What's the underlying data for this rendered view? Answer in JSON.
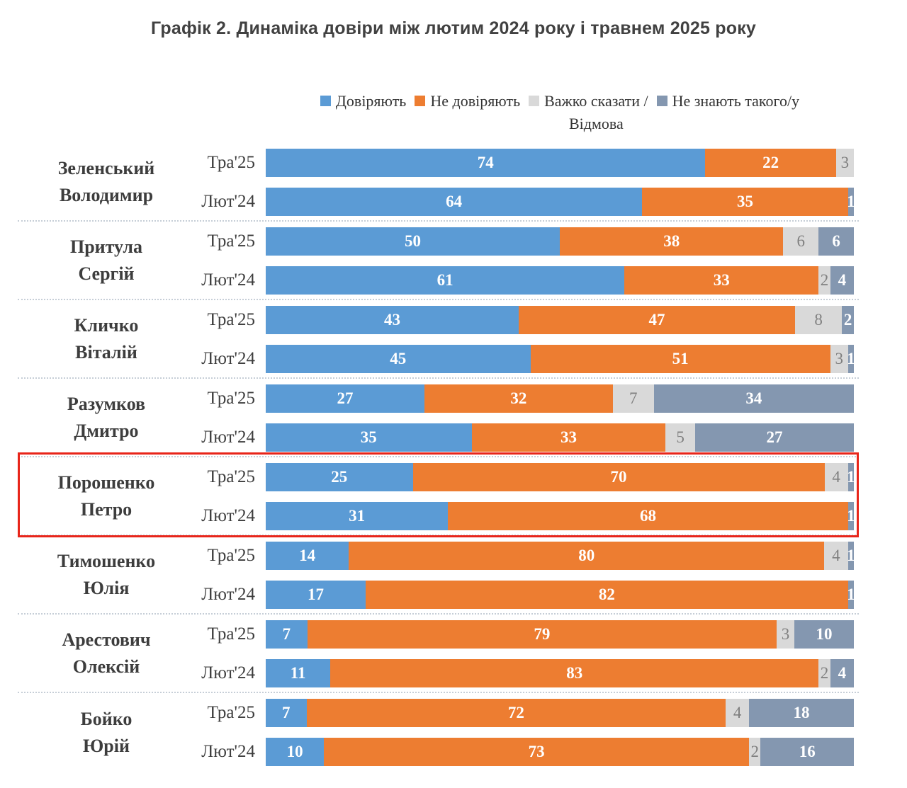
{
  "title": "Графік 2. Динаміка довіри між лютим 2024 року і травнем 2025 року",
  "legend": [
    {
      "icon": "trust-swatch",
      "label": "Довіряють",
      "color": "#5B9BD5"
    },
    {
      "icon": "distrust-swatch",
      "label": "Не довіряють",
      "color": "#ED7D31"
    },
    {
      "icon": "hard-to-say-swatch",
      "label": "Важко сказати /\nВідмова",
      "color": "#D9D9D9"
    },
    {
      "icon": "dont-know-swatch",
      "label": "Не знають такого/у",
      "color": "#8497B0"
    }
  ],
  "highlight_color": "#e8251a",
  "chart_data": {
    "type": "bar",
    "orientation": "horizontal",
    "stacked": true,
    "x_range_percent": [
      0,
      100
    ],
    "grid": false,
    "legend_position": "top",
    "series_names": [
      "Довіряють",
      "Не довіряють",
      "Важко сказати / Відмова",
      "Не знають такого/у"
    ],
    "colors": [
      "#5B9BD5",
      "#ED7D31",
      "#D9D9D9",
      "#8497B0"
    ],
    "period_labels": [
      "Тра'25",
      "Лют'24"
    ],
    "groups": [
      {
        "name": "Зеленський\nВолодимир",
        "highlighted": false,
        "rows": [
          {
            "period": "Тра'25",
            "values": [
              74,
              22,
              3,
              0
            ]
          },
          {
            "period": "Лют'24",
            "values": [
              64,
              35,
              0,
              1
            ]
          }
        ]
      },
      {
        "name": "Притула\nСергій",
        "highlighted": false,
        "rows": [
          {
            "period": "Тра'25",
            "values": [
              50,
              38,
              6,
              6
            ]
          },
          {
            "period": "Лют'24",
            "values": [
              61,
              33,
              2,
              4
            ]
          }
        ]
      },
      {
        "name": "Кличко\nВіталій",
        "highlighted": false,
        "rows": [
          {
            "period": "Тра'25",
            "values": [
              43,
              47,
              8,
              2
            ]
          },
          {
            "period": "Лют'24",
            "values": [
              45,
              51,
              3,
              1
            ]
          }
        ]
      },
      {
        "name": "Разумков\nДмитро",
        "highlighted": false,
        "rows": [
          {
            "period": "Тра'25",
            "values": [
              27,
              32,
              7,
              34
            ]
          },
          {
            "period": "Лют'24",
            "values": [
              35,
              33,
              5,
              27
            ]
          }
        ]
      },
      {
        "name": "Порошенко\nПетро",
        "highlighted": true,
        "rows": [
          {
            "period": "Тра'25",
            "values": [
              25,
              70,
              4,
              1
            ]
          },
          {
            "period": "Лют'24",
            "values": [
              31,
              68,
              0,
              1
            ]
          }
        ]
      },
      {
        "name": "Тимошенко\nЮлія",
        "highlighted": false,
        "rows": [
          {
            "period": "Тра'25",
            "values": [
              14,
              80,
              4,
              1
            ]
          },
          {
            "period": "Лют'24",
            "values": [
              17,
              82,
              0,
              1
            ]
          }
        ]
      },
      {
        "name": "Арестович\nОлексій",
        "highlighted": false,
        "rows": [
          {
            "period": "Тра'25",
            "values": [
              7,
              79,
              3,
              10
            ]
          },
          {
            "period": "Лют'24",
            "values": [
              11,
              83,
              2,
              4
            ]
          }
        ]
      },
      {
        "name": "Бойко\nЮрій",
        "highlighted": false,
        "rows": [
          {
            "period": "Тра'25",
            "values": [
              7,
              72,
              4,
              18
            ]
          },
          {
            "period": "Лют'24",
            "values": [
              10,
              73,
              2,
              16
            ]
          }
        ]
      }
    ]
  }
}
